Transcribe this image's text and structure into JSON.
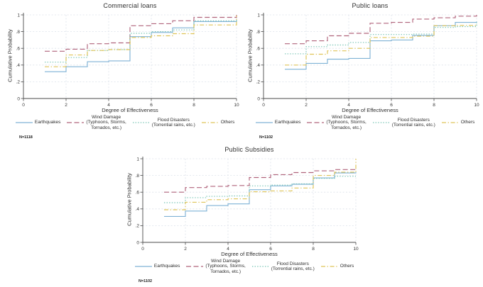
{
  "page": {
    "background": "#ffffff"
  },
  "colors": {
    "earthquakes": "#7FB2D5",
    "wind_damage": "#B0637B",
    "flood_disasters": "#74C3B2",
    "others": "#DFC457",
    "gridline": "#dce2ea",
    "axis": "#4a4a4a",
    "text": "#2e2e2e"
  },
  "axes": {
    "x_label": "Degree of Effectiveness",
    "y_label": "Cumulative Probability",
    "x_ticks": [
      "0",
      "2",
      "4",
      "6",
      "8",
      "10"
    ],
    "y_ticks": [
      "0",
      ".2",
      ".4",
      ".6",
      ".8",
      "1"
    ],
    "xlim": [
      0,
      10
    ],
    "ylim": [
      0,
      1
    ],
    "grid": "on"
  },
  "legend": {
    "position": "bottom",
    "items": [
      {
        "name": "Earthquakes",
        "label": "Earthquakes",
        "color": "#7FB2D5",
        "dash": "solid"
      },
      {
        "name": "Wind Damage",
        "label": "Wind Damage\n(Typhoons, Storms,\nTornados, etc.)",
        "color": "#B0637B",
        "dash": "dash"
      },
      {
        "name": "Flood Disasters",
        "label": "Flood Disasters\n(Torrential rains, etc.)",
        "color": "#74C3B2",
        "dash": "dot"
      },
      {
        "name": "Others",
        "label": "Others ",
        "color": "#DFC457",
        "dash": "dash-dot"
      }
    ]
  },
  "chart_data": [
    {
      "type": "line",
      "subtype": "step-cdf",
      "title": "Commercial loans",
      "n_label": "N=1118",
      "xlabel": "Degree of Effectiveness",
      "ylabel": "Cumulative Probability",
      "x": [
        1,
        2,
        3,
        4,
        5,
        6,
        7,
        8,
        9,
        10
      ],
      "series": [
        {
          "name": "Earthquakes",
          "values": [
            0.32,
            0.38,
            0.44,
            0.45,
            0.74,
            0.79,
            0.845,
            0.92,
            0.92,
            0.94
          ]
        },
        {
          "name": "Wind Damage",
          "values": [
            0.565,
            0.59,
            0.655,
            0.665,
            0.87,
            0.895,
            0.93,
            0.97,
            0.97,
            1.0
          ]
        },
        {
          "name": "Flood Disasters",
          "values": [
            0.435,
            0.49,
            0.575,
            0.585,
            0.78,
            0.8,
            0.82,
            0.93,
            0.93,
            0.95
          ]
        },
        {
          "name": "Others",
          "values": [
            0.38,
            0.52,
            0.575,
            0.585,
            0.73,
            0.75,
            0.775,
            0.88,
            0.88,
            0.99
          ]
        }
      ]
    },
    {
      "type": "line",
      "subtype": "step-cdf",
      "title": "Public loans",
      "n_label": "N=1102",
      "xlabel": "Degree of Effectiveness",
      "ylabel": "Cumulative Probability",
      "x": [
        1,
        2,
        3,
        4,
        5,
        6,
        7,
        8,
        9,
        10
      ],
      "series": [
        {
          "name": "Earthquakes",
          "values": [
            0.35,
            0.42,
            0.47,
            0.48,
            0.69,
            0.7,
            0.755,
            0.87,
            0.91,
            0.92
          ]
        },
        {
          "name": "Wind Damage",
          "values": [
            0.655,
            0.69,
            0.75,
            0.78,
            0.9,
            0.91,
            0.95,
            0.965,
            0.985,
            1.0
          ]
        },
        {
          "name": "Flood Disasters",
          "values": [
            0.535,
            0.62,
            0.64,
            0.67,
            0.765,
            0.765,
            0.77,
            0.85,
            0.86,
            0.91
          ]
        },
        {
          "name": "Others",
          "values": [
            0.4,
            0.53,
            0.57,
            0.6,
            0.73,
            0.73,
            0.745,
            0.87,
            0.875,
            0.89
          ]
        }
      ]
    },
    {
      "type": "line",
      "subtype": "step-cdf",
      "title": "Public Subsidies",
      "n_label": "N=1102",
      "xlabel": "Degree of Effectiveness",
      "ylabel": "Cumulative Probability",
      "x": [
        1,
        2,
        3,
        4,
        5,
        6,
        7,
        8,
        9,
        10
      ],
      "series": [
        {
          "name": "Earthquakes",
          "values": [
            0.31,
            0.375,
            0.44,
            0.46,
            0.63,
            0.675,
            0.695,
            0.77,
            0.83,
            0.84
          ]
        },
        {
          "name": "Wind Damage",
          "values": [
            0.6,
            0.655,
            0.67,
            0.68,
            0.775,
            0.81,
            0.835,
            0.855,
            0.87,
            0.87
          ]
        },
        {
          "name": "Flood Disasters",
          "values": [
            0.475,
            0.535,
            0.55,
            0.555,
            0.675,
            0.685,
            0.7,
            0.765,
            0.79,
            0.79
          ]
        },
        {
          "name": "Others",
          "values": [
            0.39,
            0.48,
            0.51,
            0.52,
            0.605,
            0.615,
            0.65,
            0.8,
            0.84,
            1.0
          ]
        }
      ]
    }
  ]
}
